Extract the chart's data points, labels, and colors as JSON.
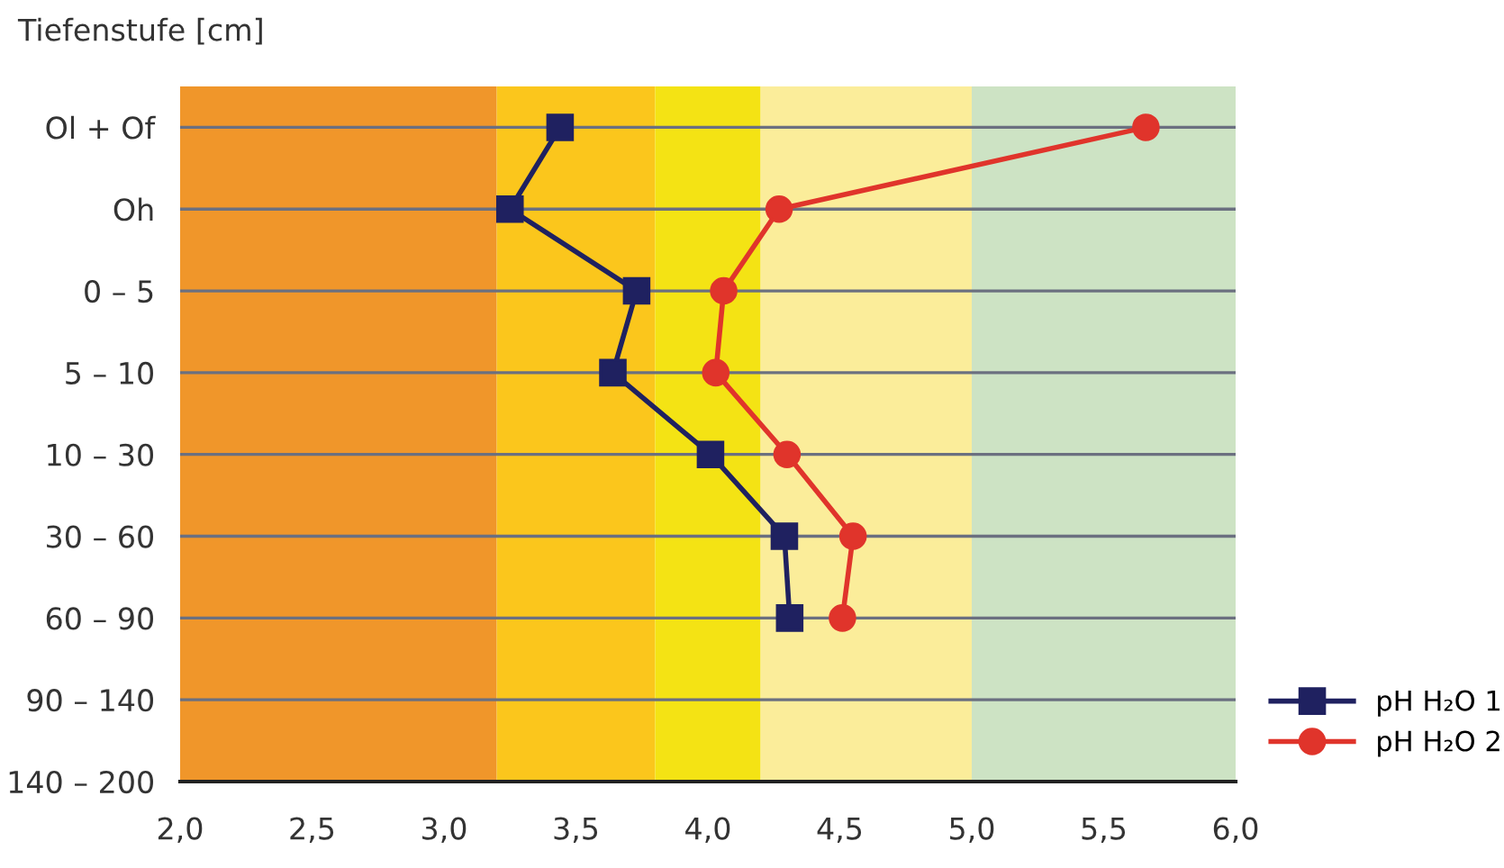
{
  "chart_data": {
    "type": "line",
    "orientation": "horizontal",
    "ylabel": "Tiefenstufe [cm]",
    "categories": [
      "Ol + Of",
      "Oh",
      "0 – 5",
      "5 – 10",
      "10 – 30",
      "30 – 60",
      "60 – 90",
      "90 – 140",
      "140 – 200"
    ],
    "series": [
      {
        "name": "pH H₂O 1",
        "color": "#1f2160",
        "marker": "square",
        "values": [
          3.44,
          3.25,
          3.73,
          3.64,
          4.01,
          4.29,
          4.31,
          null,
          null
        ]
      },
      {
        "name": "pH H₂O 2",
        "color": "#e0342b",
        "marker": "circle",
        "values": [
          5.66,
          4.27,
          4.06,
          4.03,
          4.3,
          4.55,
          4.51,
          null,
          null
        ]
      }
    ],
    "xlim": [
      2,
      6
    ],
    "xticks": [
      {
        "value": 2,
        "label": "2,0"
      },
      {
        "value": 2.5,
        "label": "2,5"
      },
      {
        "value": 3,
        "label": "3,0"
      },
      {
        "value": 3.5,
        "label": "3,5"
      },
      {
        "value": 4,
        "label": "4,0"
      },
      {
        "value": 4.5,
        "label": "4,5"
      },
      {
        "value": 5,
        "label": "5,0"
      },
      {
        "value": 5.5,
        "label": "5,5"
      },
      {
        "value": 6,
        "label": "6,0"
      }
    ],
    "bands": [
      {
        "axis": "x",
        "from": 2,
        "to": 3.2,
        "color": "#f0962a"
      },
      {
        "axis": "x",
        "from": 3.2,
        "to": 3.8,
        "color": "#fbc61c"
      },
      {
        "axis": "x",
        "from": 3.8,
        "to": 4.2,
        "color": "#f4e314"
      },
      {
        "axis": "x",
        "from": 4.2,
        "to": 5,
        "color": "#fbed9a"
      },
      {
        "axis": "x",
        "from": 5,
        "to": 6,
        "color": "#cde3c4"
      }
    ],
    "grid": "y",
    "legend": "bottom right",
    "line_style": "solid"
  }
}
